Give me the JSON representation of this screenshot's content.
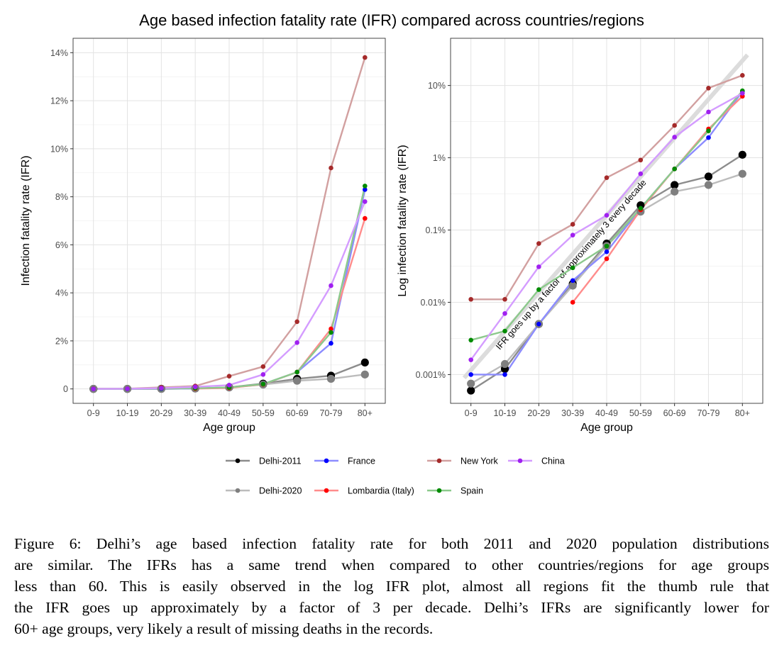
{
  "figure_title": "Age based infection fatality rate (IFR) compared across countries/regions",
  "chart_data": [
    {
      "type": "line",
      "panel": "linear",
      "title": "",
      "xlabel": "Age group",
      "ylabel": "Infection fatality rate (IFR)",
      "categories": [
        "0-9",
        "10-19",
        "20-29",
        "30-39",
        "40-49",
        "50-59",
        "60-69",
        "70-79",
        "80+"
      ],
      "ylim": [
        -0.6,
        14.6
      ],
      "yticks": [
        0,
        2,
        4,
        6,
        8,
        10,
        12,
        14
      ],
      "ytick_labels": [
        "0",
        "2%",
        "4%",
        "6%",
        "8%",
        "10%",
        "12%",
        "14%"
      ],
      "grid": true,
      "series_ref": "series"
    },
    {
      "type": "line",
      "panel": "log",
      "title": "",
      "xlabel": "Age group",
      "ylabel": "Log infection fatality rate (IFR)",
      "categories": [
        "0-9",
        "10-19",
        "20-29",
        "30-39",
        "40-49",
        "50-59",
        "60-69",
        "70-79",
        "80+"
      ],
      "yscale": "log",
      "ylim": [
        0.0004,
        45
      ],
      "yticks": [
        0.001,
        0.01,
        0.1,
        1,
        10
      ],
      "ytick_labels": [
        "0.001%",
        "0.01%",
        "0.1%",
        "1%",
        "10%"
      ],
      "grid": true,
      "reference_line": {
        "label": "IFR goes up by a factor of approximately 3 every decade",
        "x": [
          -0.2,
          8.15
        ],
        "y": [
          0.0009,
          26.5
        ]
      },
      "series_ref": "series"
    }
  ],
  "series": [
    {
      "name": "Delhi-2011",
      "color": "#000000",
      "line": "#8c8c8c",
      "big": true,
      "values": [
        0.0006,
        0.0012,
        0.005,
        0.018,
        0.065,
        0.22,
        0.42,
        0.55,
        1.1
      ]
    },
    {
      "name": "Delhi-2020",
      "color": "#7f7f7f",
      "line": "#bcbcbc",
      "big": true,
      "values": [
        0.00075,
        0.0014,
        0.005,
        0.017,
        0.06,
        0.18,
        0.34,
        0.42,
        0.6
      ]
    },
    {
      "name": "France",
      "color": "#0000ff",
      "line": "#8c8cff",
      "big": false,
      "values": [
        0.001,
        0.001,
        0.005,
        0.02,
        0.05,
        0.2,
        0.7,
        1.9,
        8.3
      ]
    },
    {
      "name": "Lombardia (Italy)",
      "color": "#ff0000",
      "line": "#ff8c8c",
      "big": false,
      "values": [
        null,
        null,
        null,
        0.01,
        0.04,
        0.19,
        0.7,
        2.5,
        7.1
      ]
    },
    {
      "name": "New York",
      "color": "#a52a2a",
      "line": "#d2a0a0",
      "big": false,
      "values": [
        0.011,
        0.011,
        0.065,
        0.12,
        0.53,
        0.93,
        2.8,
        9.2,
        13.8
      ]
    },
    {
      "name": "Spain",
      "color": "#008b00",
      "line": "#8cc98c",
      "big": false,
      "values": [
        0.003,
        0.004,
        0.015,
        0.03,
        0.06,
        0.2,
        0.7,
        2.35,
        8.45
      ]
    },
    {
      "name": "China",
      "color": "#a020f0",
      "line": "#d49cff",
      "big": false,
      "values": [
        0.0016,
        0.007,
        0.031,
        0.085,
        0.16,
        0.6,
        1.93,
        4.3,
        7.8
      ]
    }
  ],
  "legend": {
    "position": "bottom",
    "row1": [
      "Delhi-2011",
      "France",
      "New York",
      "China"
    ],
    "row2": [
      "Delhi-2020",
      "Lombardia (Italy)",
      "Spain"
    ]
  },
  "caption_lines": [
    "Figure 6: Delhi’s age based infection fatality rate for both 2011 and 2020 population distributions",
    "are similar. The IFRs has a same trend when compared to other countries/regions for age groups",
    "less than 60. This is easily observed in the log IFR plot, almost all regions fit the thumb rule that",
    "the IFR goes up approximately by a factor of 3 per decade. Delhi’s IFRs are significantly lower for",
    "60+ age groups, very likely a result of missing deaths in the records."
  ]
}
